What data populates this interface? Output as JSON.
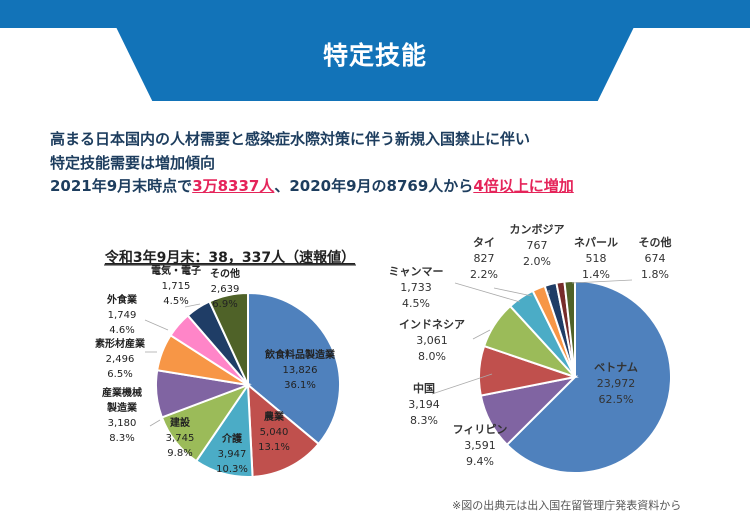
{
  "header": {
    "title": "特定技能"
  },
  "lead": {
    "line1": "高まる日本国内の人材需要と感染症水際対策に伴う新規入国禁止に伴い",
    "line2": "特定技能需要は増加傾向",
    "line3_pre": "2021年9月末時点で",
    "line3_hl1": "3万8337人",
    "line3_mid": "、2020年9月の8769人から",
    "line3_hl2": "4倍以上に増加"
  },
  "source_note": "※図の出典元は出入国在留管理庁発表資料から",
  "chart_data": [
    {
      "type": "pie",
      "title": "令和3年9月末：38，337人（速報値）",
      "start": "12 o'clock, clockwise",
      "slices": [
        {
          "label": "飲食料品製造業",
          "value": 13826,
          "value_text": "13,826",
          "pct": "36.1%",
          "color": "#4f81bd"
        },
        {
          "label": "農業",
          "value": 5040,
          "value_text": "5,040",
          "pct": "13.1%",
          "color": "#c0504d"
        },
        {
          "label": "介護",
          "value": 3947,
          "value_text": "3,947",
          "pct": "10.3%",
          "color": "#4bacc6"
        },
        {
          "label": "建設",
          "value": 3745,
          "value_text": "3,745",
          "pct": "9.8%",
          "color": "#9bbb59"
        },
        {
          "label": "産業機械\n製造業",
          "value": 3180,
          "value_text": "3,180",
          "pct": "8.3%",
          "color": "#8064a2"
        },
        {
          "label": "素形材産業",
          "value": 2496,
          "value_text": "2,496",
          "pct": "6.5%",
          "color": "#f79646"
        },
        {
          "label": "外食業",
          "value": 1749,
          "value_text": "1,749",
          "pct": "4.6%",
          "color": "#ff85c8"
        },
        {
          "label": "電気・電子",
          "value": 1715,
          "value_text": "1,715",
          "pct": "4.5%",
          "color": "#1f3d66"
        },
        {
          "label": "その他",
          "value": 2639,
          "value_text": "2,639",
          "pct": "6.9%",
          "color": "#4f6228"
        }
      ]
    },
    {
      "type": "pie",
      "title": "",
      "start": "12 o'clock, clockwise",
      "slices": [
        {
          "label": "ベトナム",
          "value": 23972,
          "value_text": "23,972",
          "pct": "62.5%",
          "color": "#4f81bd"
        },
        {
          "label": "フィリピン",
          "value": 3591,
          "value_text": "3,591",
          "pct": "9.4%",
          "color": "#8064a2"
        },
        {
          "label": "中国",
          "value": 3194,
          "value_text": "3,194",
          "pct": "8.3%",
          "color": "#c0504d"
        },
        {
          "label": "インドネシア",
          "value": 3061,
          "value_text": "3,061",
          "pct": "8.0%",
          "color": "#9bbb59"
        },
        {
          "label": "ミャンマー",
          "value": 1733,
          "value_text": "1,733",
          "pct": "4.5%",
          "color": "#4bacc6"
        },
        {
          "label": "タイ",
          "value": 827,
          "value_text": "827",
          "pct": "2.2%",
          "color": "#f79646"
        },
        {
          "label": "カンボジア",
          "value": 767,
          "value_text": "767",
          "pct": "2.0%",
          "color": "#1f3d66"
        },
        {
          "label": "ネパール",
          "value": 518,
          "value_text": "518",
          "pct": "1.4%",
          "color": "#772c2a"
        },
        {
          "label": "その他",
          "value": 674,
          "value_text": "674",
          "pct": "1.8%",
          "color": "#4f6228"
        }
      ]
    }
  ]
}
